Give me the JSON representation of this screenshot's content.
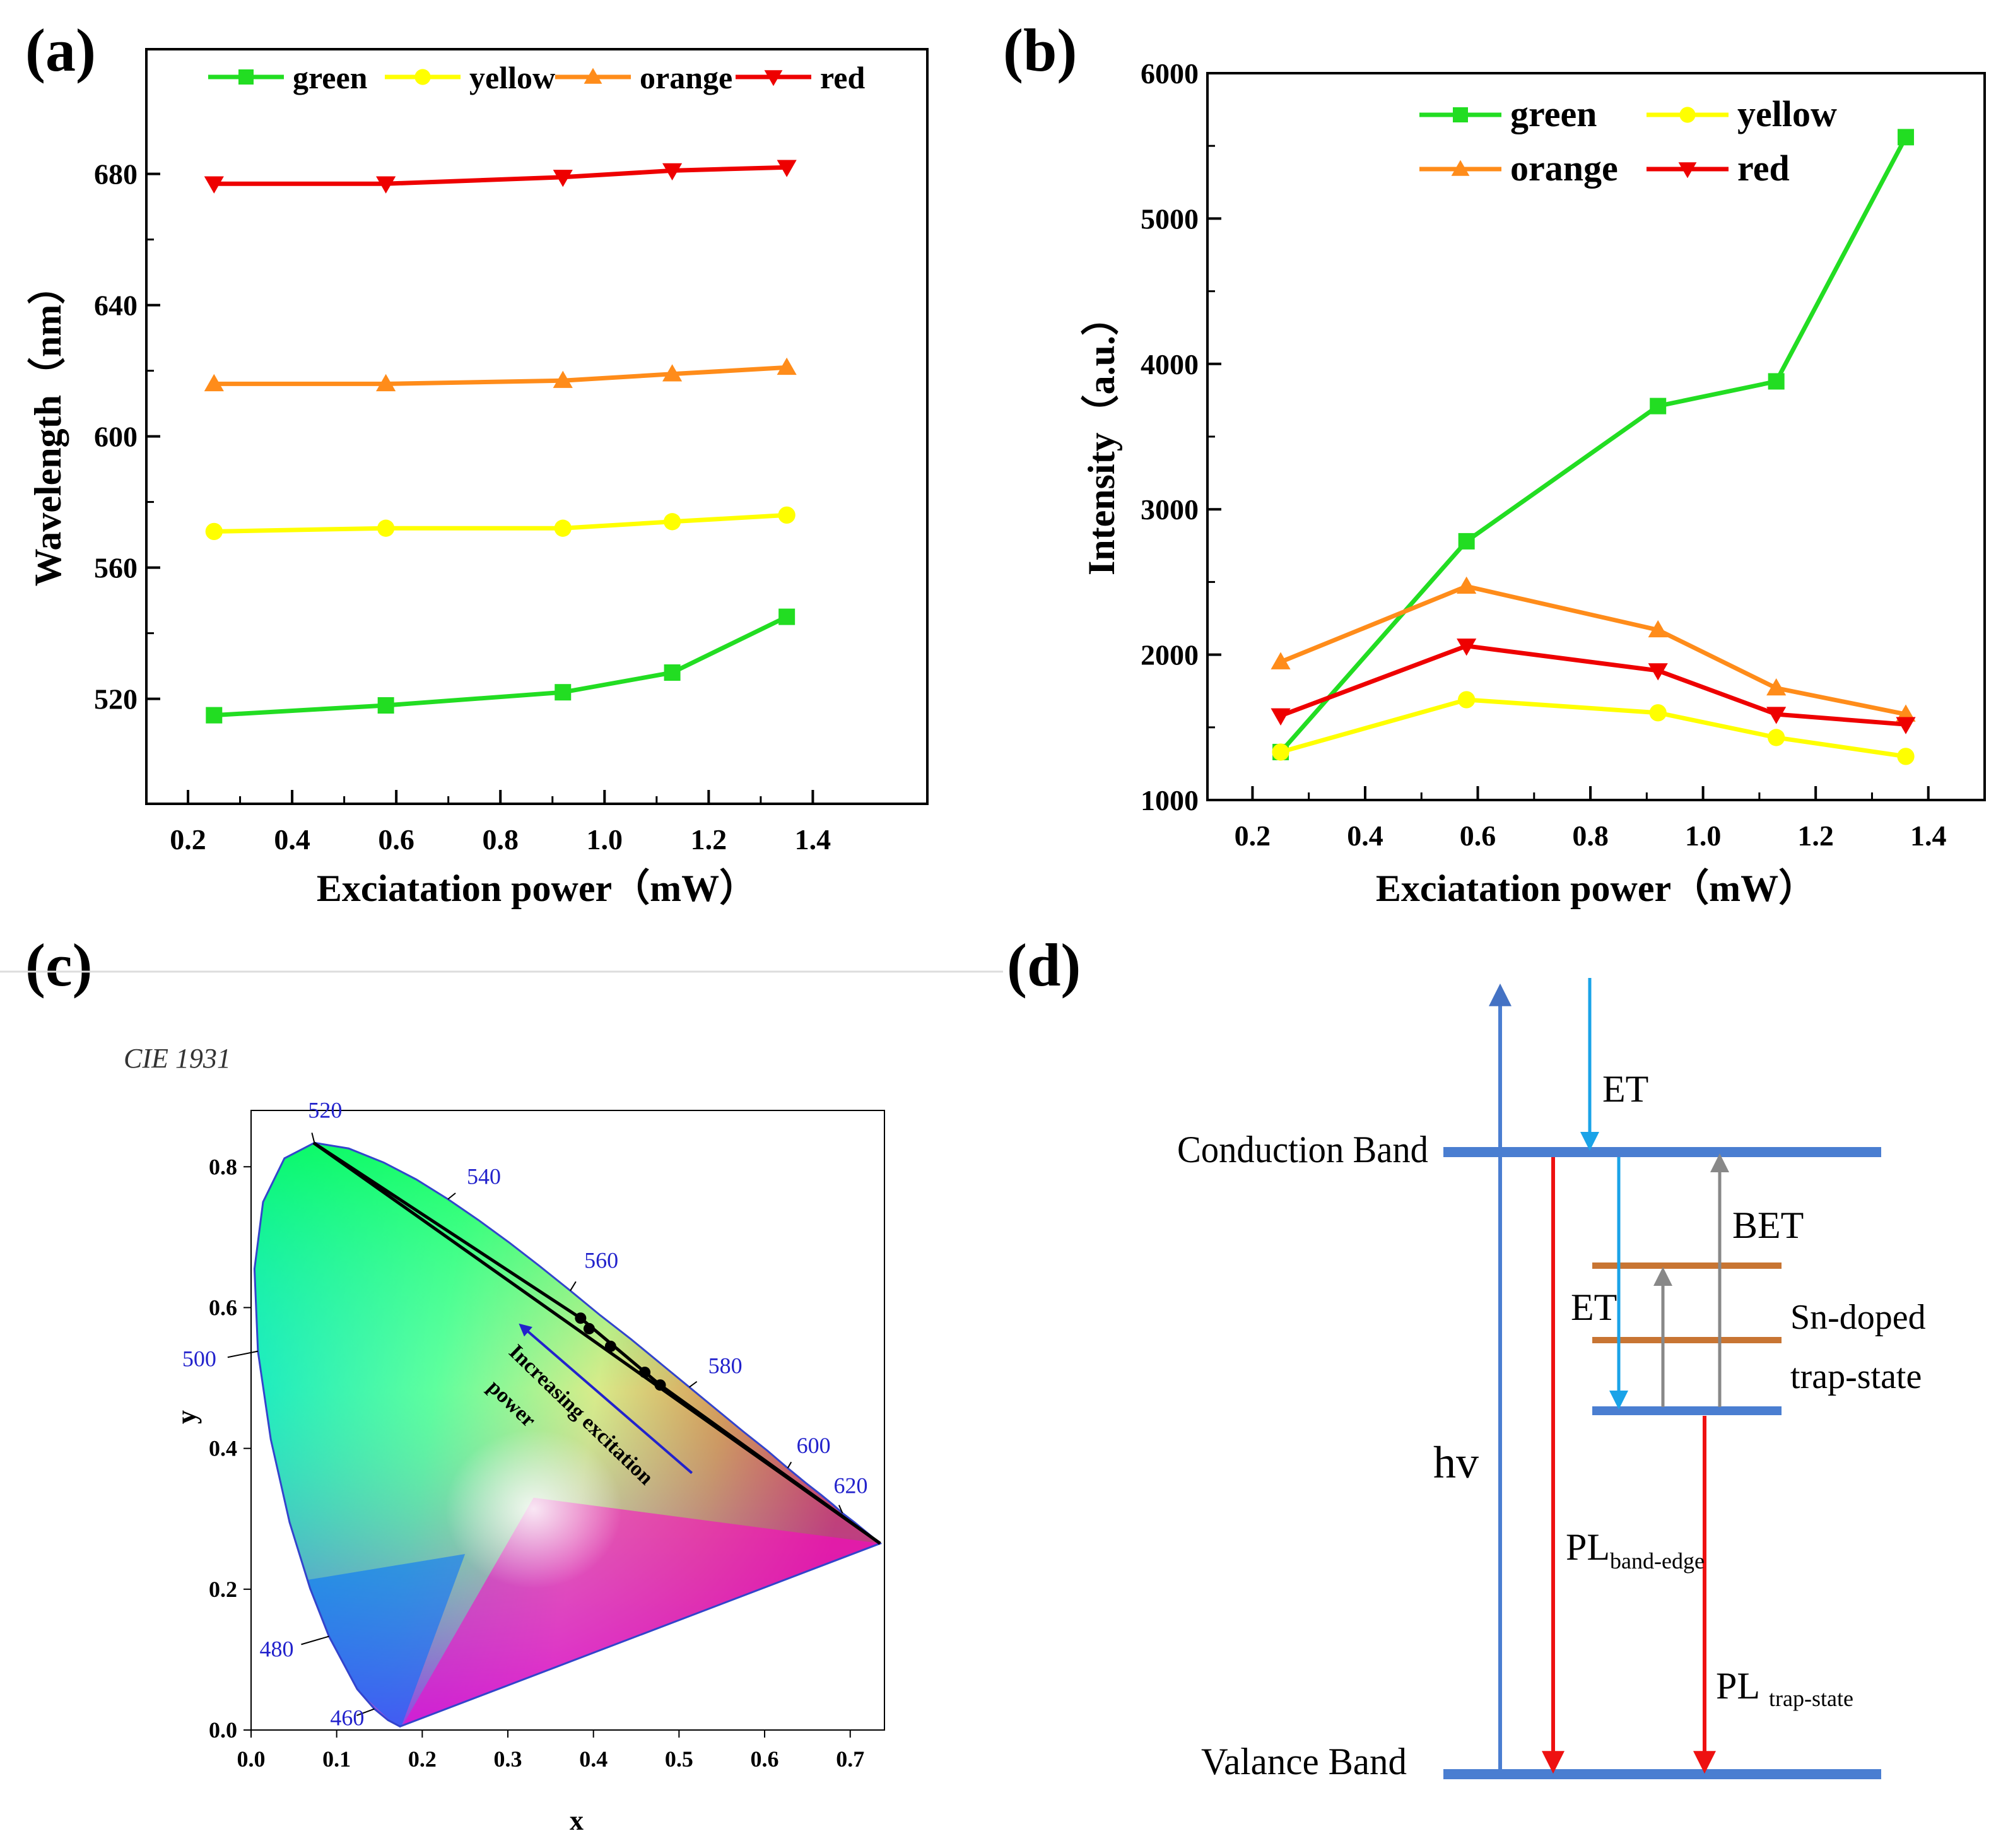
{
  "chart_data": [
    {
      "panel": "(a)",
      "type": "line",
      "xlabel": "Exciatation power（mW）",
      "ylabel": "Wavelength（nm）",
      "xlim": [
        0.12,
        1.62
      ],
      "ylim": [
        488,
        718
      ],
      "xticks": [
        0.2,
        0.4,
        0.6,
        0.8,
        1.0,
        1.2,
        1.4
      ],
      "xtick_labels": [
        "0.2",
        "0.4",
        "0.6",
        "0.8",
        "1.0",
        "1.2",
        "1.4"
      ],
      "yticks": [
        520,
        560,
        600,
        640,
        680
      ],
      "ytick_labels": [
        "520",
        "560",
        "600",
        "640",
        "680"
      ],
      "legend_position": "top",
      "series": [
        {
          "name": "green",
          "color": "#22dd22",
          "marker": "square",
          "x": [
            0.25,
            0.58,
            0.92,
            1.13,
            1.35
          ],
          "y": [
            515,
            518,
            522,
            528,
            545
          ]
        },
        {
          "name": "yellow",
          "color": "#ffff00",
          "marker": "circle",
          "x": [
            0.25,
            0.58,
            0.92,
            1.13,
            1.35
          ],
          "y": [
            571,
            572,
            572,
            574,
            576
          ]
        },
        {
          "name": "orange",
          "color": "#ff8c1a",
          "marker": "triangle-up",
          "x": [
            0.25,
            0.58,
            0.92,
            1.13,
            1.35
          ],
          "y": [
            616,
            616,
            617,
            619,
            621
          ]
        },
        {
          "name": "red",
          "color": "#ee0000",
          "marker": "triangle-down",
          "x": [
            0.25,
            0.58,
            0.92,
            1.13,
            1.35
          ],
          "y": [
            677,
            677,
            679,
            681,
            682
          ]
        }
      ]
    },
    {
      "panel": "(b)",
      "type": "line",
      "xlabel": "Exciatation power（mW）",
      "ylabel": "Intensity（a.u.）",
      "xlim": [
        0.12,
        1.5
      ],
      "ylim": [
        1000,
        6000
      ],
      "xticks": [
        0.2,
        0.4,
        0.6,
        0.8,
        1.0,
        1.2,
        1.4
      ],
      "xtick_labels": [
        "0.2",
        "0.4",
        "0.6",
        "0.8",
        "1.0",
        "1.2",
        "1.4"
      ],
      "yticks": [
        1000,
        2000,
        3000,
        4000,
        5000,
        6000
      ],
      "ytick_labels": [
        "1000",
        "2000",
        "3000",
        "4000",
        "5000",
        "6000"
      ],
      "legend_position": "top-right",
      "series": [
        {
          "name": "green",
          "color": "#22dd22",
          "marker": "square",
          "x": [
            0.25,
            0.58,
            0.92,
            1.13,
            1.36
          ],
          "y": [
            1330,
            2780,
            3710,
            3880,
            5560
          ]
        },
        {
          "name": "yellow",
          "color": "#ffff00",
          "marker": "circle",
          "x": [
            0.25,
            0.58,
            0.92,
            1.13,
            1.36
          ],
          "y": [
            1330,
            1690,
            1600,
            1430,
            1300
          ]
        },
        {
          "name": "orange",
          "color": "#ff8c1a",
          "marker": "triangle-up",
          "x": [
            0.25,
            0.58,
            0.92,
            1.13,
            1.36
          ],
          "y": [
            1950,
            2470,
            2170,
            1770,
            1590
          ]
        },
        {
          "name": "red",
          "color": "#ee0000",
          "marker": "triangle-down",
          "x": [
            0.25,
            0.58,
            0.92,
            1.13,
            1.36
          ],
          "y": [
            1580,
            2060,
            1890,
            1590,
            1520
          ]
        }
      ]
    },
    {
      "panel": "(c)",
      "type": "scatter",
      "title": "CIE 1931",
      "xlabel": "x",
      "ylabel": "y",
      "xlim": [
        0.0,
        0.74
      ],
      "ylim": [
        0.0,
        0.88
      ],
      "xticks": [
        0.0,
        0.1,
        0.2,
        0.3,
        0.4,
        0.5,
        0.6,
        0.7
      ],
      "xtick_labels": [
        "0.0",
        "0.1",
        "0.2",
        "0.3",
        "0.4",
        "0.5",
        "0.6",
        "0.7"
      ],
      "yticks": [
        0.0,
        0.2,
        0.4,
        0.6,
        0.8
      ],
      "ytick_labels": [
        "0.0",
        "0.2",
        "0.4",
        "0.6",
        "0.8"
      ],
      "wavelength_labels": [
        {
          "nm": "460",
          "x": 0.144,
          "y": 0.03
        },
        {
          "nm": "480",
          "x": 0.091,
          "y": 0.133
        },
        {
          "nm": "500",
          "x": 0.008,
          "y": 0.538
        },
        {
          "nm": "520",
          "x": 0.074,
          "y": 0.834
        },
        {
          "nm": "540",
          "x": 0.23,
          "y": 0.754
        },
        {
          "nm": "560",
          "x": 0.373,
          "y": 0.624
        },
        {
          "nm": "580",
          "x": 0.512,
          "y": 0.487
        },
        {
          "nm": "600",
          "x": 0.627,
          "y": 0.372
        },
        {
          "nm": "620",
          "x": 0.691,
          "y": 0.308
        }
      ],
      "points": [
        {
          "x": 0.385,
          "y": 0.585
        },
        {
          "x": 0.395,
          "y": 0.57
        },
        {
          "x": 0.42,
          "y": 0.545
        },
        {
          "x": 0.46,
          "y": 0.508
        },
        {
          "x": 0.478,
          "y": 0.49
        }
      ],
      "annotation": {
        "line1": "Increasing excitation",
        "line2": "power"
      }
    }
  ],
  "panels": {
    "a": "(a)",
    "b": "(b)",
    "c": "(c)",
    "d": "(d)"
  },
  "diagram": {
    "conduction_band": "Conduction Band",
    "valence_band": "Valance Band",
    "hv": "hv",
    "et_top": "ET",
    "et_mid": "ET",
    "bet": "BET",
    "sn_line1": "Sn-doped",
    "sn_line2": "trap-state",
    "pl_band_main": "PL",
    "pl_band_sub": "band-edge",
    "pl_trap_main": "PL",
    "pl_trap_sub": "trap-state"
  }
}
